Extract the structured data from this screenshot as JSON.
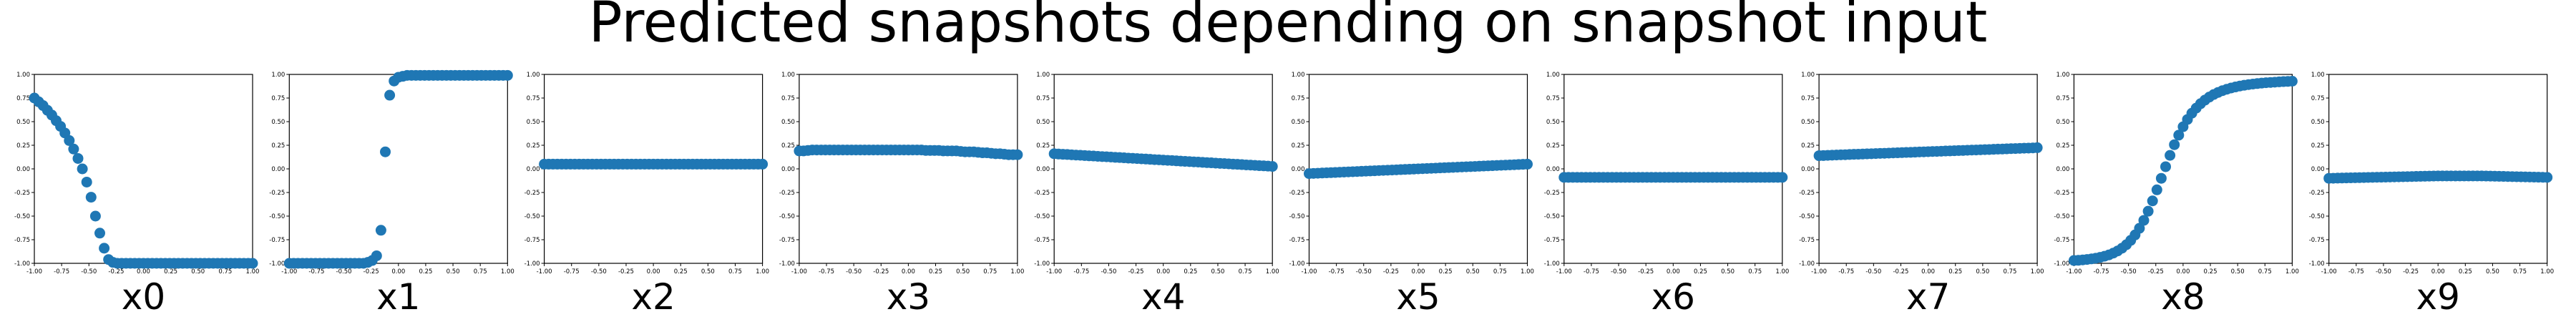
{
  "title": "Predicted snapshots depending on snapshot input",
  "chart_data": {
    "type": "scatter",
    "marker_color": "#1f77b4",
    "xlim": [
      -1,
      1
    ],
    "ylim": [
      -1,
      1
    ],
    "x_ticks": [
      "-1.00",
      "-0.75",
      "-0.50",
      "-0.25",
      "0.00",
      "0.25",
      "0.50",
      "0.75",
      "1.00"
    ],
    "y_ticks": [
      "-1.00",
      "-0.75",
      "-0.50",
      "-0.25",
      "0.00",
      "0.25",
      "0.50",
      "0.75",
      "1.00"
    ],
    "x": [
      -1.0,
      -0.96,
      -0.92,
      -0.88,
      -0.84,
      -0.8,
      -0.76,
      -0.72,
      -0.68,
      -0.64,
      -0.6,
      -0.56,
      -0.52,
      -0.48,
      -0.44,
      -0.4,
      -0.36,
      -0.32,
      -0.28,
      -0.24,
      -0.2,
      -0.16,
      -0.12,
      -0.08,
      -0.04,
      0.0,
      0.04,
      0.08,
      0.12,
      0.16,
      0.2,
      0.24,
      0.28,
      0.32,
      0.36,
      0.4,
      0.44,
      0.48,
      0.52,
      0.56,
      0.6,
      0.64,
      0.68,
      0.72,
      0.76,
      0.8,
      0.84,
      0.88,
      0.92,
      0.96,
      1.0
    ],
    "panels": [
      {
        "label": "x0",
        "y": [
          0.75,
          0.71,
          0.67,
          0.62,
          0.57,
          0.51,
          0.45,
          0.38,
          0.3,
          0.21,
          0.11,
          0.0,
          -0.14,
          -0.3,
          -0.5,
          -0.68,
          -0.84,
          -0.96,
          -0.99,
          -1.0,
          -1.0,
          -1.0,
          -1.0,
          -1.0,
          -1.0,
          -1.0,
          -1.0,
          -1.0,
          -1.0,
          -1.0,
          -1.0,
          -1.0,
          -1.0,
          -1.0,
          -1.0,
          -1.0,
          -1.0,
          -1.0,
          -1.0,
          -1.0,
          -1.0,
          -1.0,
          -1.0,
          -1.0,
          -1.0,
          -1.0,
          -1.0,
          -1.0,
          -1.0,
          -1.0,
          -1.0
        ]
      },
      {
        "label": "x1",
        "y": [
          -1.0,
          -1.0,
          -1.0,
          -1.0,
          -1.0,
          -1.0,
          -1.0,
          -1.0,
          -1.0,
          -1.0,
          -1.0,
          -1.0,
          -1.0,
          -1.0,
          -1.0,
          -1.0,
          -1.0,
          -1.0,
          -0.99,
          -0.97,
          -0.92,
          -0.65,
          0.18,
          0.78,
          0.93,
          0.97,
          0.98,
          0.99,
          0.99,
          0.99,
          0.99,
          0.99,
          0.99,
          0.99,
          0.99,
          0.99,
          0.99,
          0.99,
          0.99,
          0.99,
          0.99,
          0.99,
          0.99,
          0.99,
          0.99,
          0.99,
          0.99,
          0.99,
          0.99,
          0.99,
          0.99
        ]
      },
      {
        "label": "x2",
        "y": [
          0.05,
          0.05,
          0.05,
          0.05,
          0.05,
          0.05,
          0.05,
          0.05,
          0.05,
          0.05,
          0.05,
          0.05,
          0.05,
          0.05,
          0.05,
          0.05,
          0.05,
          0.05,
          0.05,
          0.05,
          0.05,
          0.05,
          0.05,
          0.05,
          0.05,
          0.05,
          0.05,
          0.05,
          0.05,
          0.05,
          0.05,
          0.05,
          0.05,
          0.05,
          0.05,
          0.05,
          0.05,
          0.05,
          0.05,
          0.05,
          0.05,
          0.05,
          0.05,
          0.05,
          0.05,
          0.05,
          0.05,
          0.05,
          0.05,
          0.05,
          0.05
        ]
      },
      {
        "label": "x3",
        "y": [
          0.19,
          0.19,
          0.195,
          0.2,
          0.2,
          0.2,
          0.2,
          0.2,
          0.2,
          0.2,
          0.2,
          0.2,
          0.2,
          0.2,
          0.2,
          0.2,
          0.2,
          0.2,
          0.2,
          0.2,
          0.2,
          0.2,
          0.2,
          0.2,
          0.2,
          0.2,
          0.2,
          0.2,
          0.2,
          0.195,
          0.195,
          0.195,
          0.195,
          0.19,
          0.19,
          0.19,
          0.19,
          0.185,
          0.18,
          0.18,
          0.18,
          0.175,
          0.17,
          0.17,
          0.165,
          0.16,
          0.16,
          0.155,
          0.15,
          0.15,
          0.15
        ]
      },
      {
        "label": "x4",
        "y": [
          0.16,
          0.157,
          0.154,
          0.152,
          0.149,
          0.146,
          0.144,
          0.141,
          0.138,
          0.136,
          0.133,
          0.13,
          0.128,
          0.125,
          0.122,
          0.12,
          0.117,
          0.114,
          0.112,
          0.109,
          0.106,
          0.104,
          0.101,
          0.098,
          0.096,
          0.093,
          0.09,
          0.088,
          0.085,
          0.082,
          0.08,
          0.077,
          0.074,
          0.072,
          0.069,
          0.066,
          0.064,
          0.061,
          0.058,
          0.056,
          0.053,
          0.05,
          0.048,
          0.045,
          0.042,
          0.04,
          0.037,
          0.034,
          0.032,
          0.029,
          0.026
        ]
      },
      {
        "label": "x5",
        "y": [
          -0.05,
          -0.048,
          -0.046,
          -0.044,
          -0.042,
          -0.04,
          -0.038,
          -0.036,
          -0.034,
          -0.032,
          -0.03,
          -0.028,
          -0.026,
          -0.024,
          -0.022,
          -0.02,
          -0.018,
          -0.016,
          -0.014,
          -0.012,
          -0.01,
          -0.008,
          -0.006,
          -0.004,
          -0.002,
          0.0,
          0.002,
          0.004,
          0.006,
          0.008,
          0.01,
          0.012,
          0.014,
          0.016,
          0.018,
          0.02,
          0.022,
          0.024,
          0.026,
          0.028,
          0.03,
          0.032,
          0.034,
          0.036,
          0.038,
          0.04,
          0.042,
          0.044,
          0.046,
          0.048,
          0.05
        ]
      },
      {
        "label": "x6",
        "y": [
          -0.09,
          -0.09,
          -0.09,
          -0.09,
          -0.09,
          -0.09,
          -0.09,
          -0.09,
          -0.09,
          -0.09,
          -0.09,
          -0.09,
          -0.09,
          -0.09,
          -0.09,
          -0.09,
          -0.09,
          -0.09,
          -0.09,
          -0.09,
          -0.09,
          -0.09,
          -0.09,
          -0.09,
          -0.09,
          -0.09,
          -0.09,
          -0.09,
          -0.09,
          -0.09,
          -0.09,
          -0.09,
          -0.09,
          -0.09,
          -0.09,
          -0.09,
          -0.09,
          -0.09,
          -0.09,
          -0.09,
          -0.09,
          -0.09,
          -0.09,
          -0.09,
          -0.09,
          -0.09,
          -0.09,
          -0.09,
          -0.09,
          -0.09,
          -0.09
        ]
      },
      {
        "label": "x7",
        "y": [
          0.14,
          0.141,
          0.143,
          0.145,
          0.147,
          0.149,
          0.15,
          0.152,
          0.154,
          0.155,
          0.157,
          0.159,
          0.16,
          0.162,
          0.164,
          0.165,
          0.167,
          0.169,
          0.17,
          0.172,
          0.174,
          0.175,
          0.177,
          0.179,
          0.18,
          0.182,
          0.184,
          0.185,
          0.187,
          0.189,
          0.19,
          0.192,
          0.194,
          0.195,
          0.197,
          0.199,
          0.2,
          0.202,
          0.204,
          0.205,
          0.207,
          0.209,
          0.21,
          0.212,
          0.214,
          0.215,
          0.217,
          0.219,
          0.22,
          0.222,
          0.224
        ]
      },
      {
        "label": "x8",
        "y": [
          -0.97,
          -0.968,
          -0.964,
          -0.959,
          -0.953,
          -0.946,
          -0.937,
          -0.925,
          -0.911,
          -0.892,
          -0.869,
          -0.84,
          -0.803,
          -0.757,
          -0.699,
          -0.629,
          -0.545,
          -0.448,
          -0.339,
          -0.222,
          -0.1,
          0.023,
          0.143,
          0.256,
          0.357,
          0.446,
          0.523,
          0.589,
          0.643,
          0.69,
          0.728,
          0.76,
          0.787,
          0.809,
          0.828,
          0.843,
          0.856,
          0.867,
          0.877,
          0.885,
          0.892,
          0.898,
          0.903,
          0.908,
          0.912,
          0.915,
          0.918,
          0.921,
          0.924,
          0.926,
          0.928
        ]
      },
      {
        "label": "x9",
        "y": [
          -0.1,
          -0.099,
          -0.098,
          -0.097,
          -0.096,
          -0.095,
          -0.094,
          -0.093,
          -0.092,
          -0.091,
          -0.09,
          -0.089,
          -0.088,
          -0.087,
          -0.086,
          -0.085,
          -0.084,
          -0.083,
          -0.082,
          -0.081,
          -0.08,
          -0.079,
          -0.078,
          -0.077,
          -0.076,
          -0.075,
          -0.075,
          -0.075,
          -0.075,
          -0.075,
          -0.075,
          -0.075,
          -0.075,
          -0.075,
          -0.075,
          -0.075,
          -0.076,
          -0.077,
          -0.078,
          -0.079,
          -0.08,
          -0.081,
          -0.082,
          -0.083,
          -0.084,
          -0.085,
          -0.086,
          -0.087,
          -0.088,
          -0.089,
          -0.09
        ]
      }
    ]
  }
}
